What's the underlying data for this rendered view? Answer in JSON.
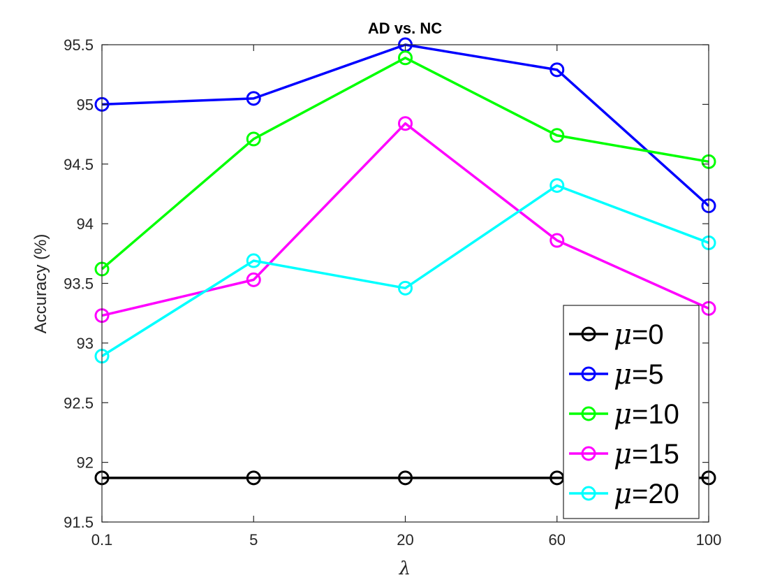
{
  "chart_data": {
    "type": "line",
    "title": "AD vs. NC",
    "xlabel": "λ",
    "ylabel": "Accuracy (%)",
    "categories": [
      "0.1",
      "5",
      "20",
      "60",
      "100"
    ],
    "ylim": [
      91.5,
      95.5
    ],
    "yticks": [
      "91.5",
      "92",
      "92.5",
      "93",
      "93.5",
      "94",
      "94.5",
      "95",
      "95.5"
    ],
    "grid": false,
    "legend_position": "bottom-right",
    "series": [
      {
        "name": "μ=0",
        "symbol": "μ",
        "suffix": "=0",
        "color": "#000000",
        "values": [
          91.87,
          91.87,
          91.87,
          91.87,
          91.87
        ]
      },
      {
        "name": "μ=5",
        "symbol": "μ",
        "suffix": "=5",
        "color": "#0000ff",
        "values": [
          95.0,
          95.05,
          95.5,
          95.29,
          94.15
        ]
      },
      {
        "name": "μ=10",
        "symbol": "μ",
        "suffix": "=10",
        "color": "#00ff00",
        "values": [
          93.62,
          94.71,
          95.39,
          94.74,
          94.52
        ]
      },
      {
        "name": "μ=15",
        "symbol": "μ",
        "suffix": "=15",
        "color": "#ff00ff",
        "values": [
          93.23,
          93.53,
          94.84,
          93.86,
          93.29
        ]
      },
      {
        "name": "μ=20",
        "symbol": "μ",
        "suffix": "=20",
        "color": "#00ffff",
        "values": [
          92.89,
          93.69,
          93.46,
          94.32,
          93.84
        ]
      }
    ]
  }
}
